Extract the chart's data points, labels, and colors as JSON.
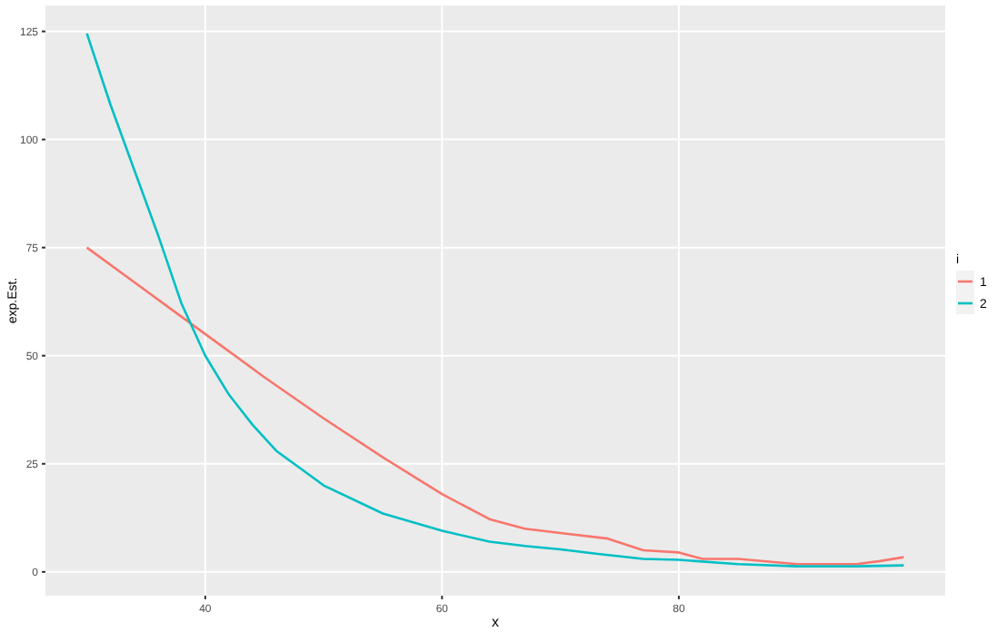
{
  "chart_data": {
    "type": "line",
    "xlabel": "x",
    "ylabel": "exp.Est.",
    "legend_title": "i",
    "legend": "right",
    "grid": true,
    "xlim": [
      26.5,
      102.5
    ],
    "ylim": [
      -5.5,
      131
    ],
    "xticks": [
      40,
      60,
      80
    ],
    "yticks": [
      0,
      25,
      50,
      75,
      100,
      125
    ],
    "series": [
      {
        "name": "1",
        "color": "#f8766d",
        "x": [
          30,
          34,
          38,
          40,
          45,
          50,
          55,
          60,
          64,
          67,
          70,
          74,
          77,
          80,
          82,
          85,
          90,
          95,
          97,
          99
        ],
        "values": [
          75,
          67,
          59,
          55,
          45,
          35.5,
          26.5,
          18,
          12.2,
          10,
          9,
          7.7,
          5,
          4.5,
          3,
          3,
          1.8,
          1.8,
          2.5,
          3.4
        ]
      },
      {
        "name": "2",
        "color": "#00bfc4",
        "x": [
          30,
          32,
          34,
          36,
          38,
          40,
          42,
          44,
          46,
          48,
          50,
          55,
          60,
          64,
          67,
          70,
          73,
          77,
          80,
          85,
          90,
          95,
          99
        ],
        "values": [
          124.5,
          108,
          93,
          78,
          62,
          50,
          41,
          34,
          28,
          24,
          20,
          13.5,
          9.5,
          7,
          6,
          5.2,
          4.2,
          3,
          2.8,
          1.8,
          1.3,
          1.3,
          1.5
        ]
      }
    ]
  }
}
